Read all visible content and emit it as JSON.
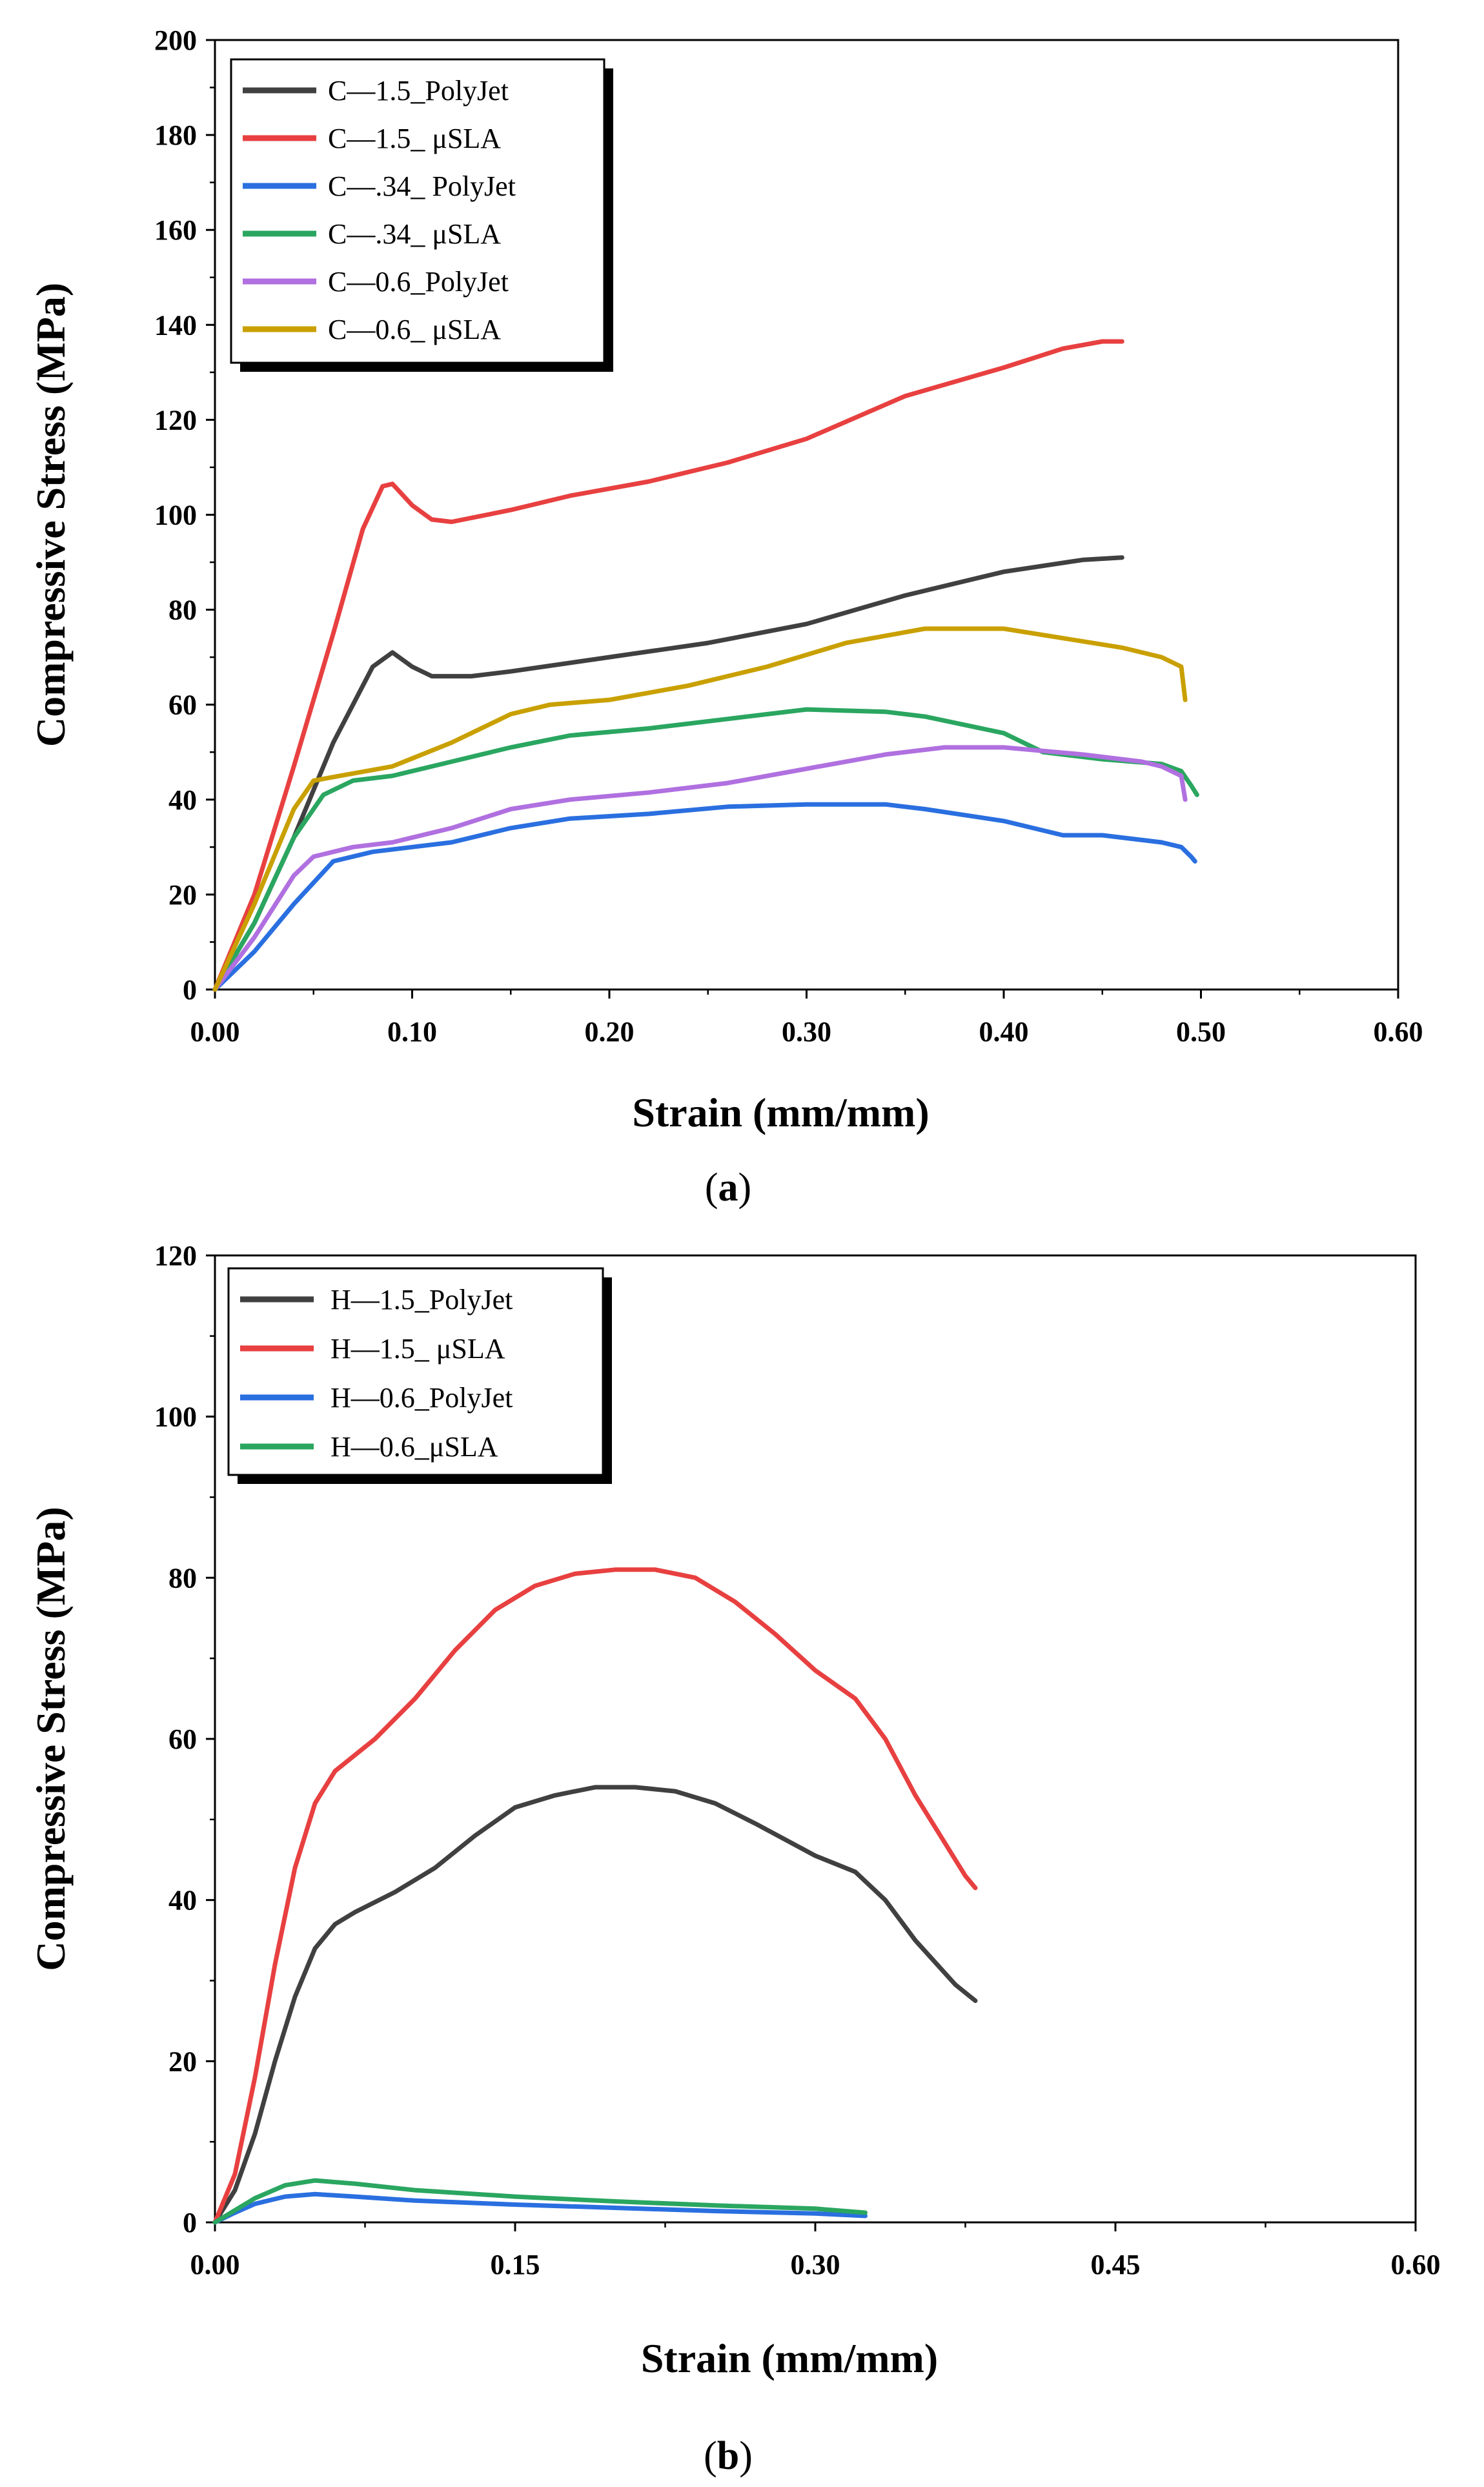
{
  "figure": {
    "panels": [
      {
        "caption_open": "(",
        "caption_letter": "a",
        "caption_close": ")"
      },
      {
        "caption_open": "(",
        "caption_letter": "b",
        "caption_close": ")"
      }
    ]
  },
  "chart_data": [
    {
      "type": "line",
      "xlabel": "Strain (mm/mm)",
      "ylabel": "Compressive Stress (MPa)",
      "xlim": [
        0,
        0.6
      ],
      "ylim": [
        0,
        200
      ],
      "xticks": [
        0,
        0.1,
        0.2,
        0.3,
        0.4,
        0.5,
        0.6
      ],
      "xtick_labels": [
        "0.00",
        "0.10",
        "0.20",
        "0.30",
        "0.40",
        "0.50",
        "0.60"
      ],
      "yticks": [
        0,
        20,
        40,
        60,
        80,
        100,
        120,
        140,
        160,
        180,
        200
      ],
      "ytick_labels": [
        "0",
        "20",
        "40",
        "60",
        "80",
        "100",
        "120",
        "140",
        "160",
        "180",
        "200"
      ],
      "grid": false,
      "legend_position": "top-left",
      "series": [
        {
          "name": "C—1.5_PolyJet",
          "color": "#404040",
          "points": [
            [
              0,
              0
            ],
            [
              0.02,
              14
            ],
            [
              0.04,
              32
            ],
            [
              0.06,
              52
            ],
            [
              0.08,
              68
            ],
            [
              0.09,
              71
            ],
            [
              0.1,
              68
            ],
            [
              0.11,
              66
            ],
            [
              0.13,
              66
            ],
            [
              0.15,
              67
            ],
            [
              0.2,
              70
            ],
            [
              0.25,
              73
            ],
            [
              0.3,
              77
            ],
            [
              0.35,
              83
            ],
            [
              0.4,
              88
            ],
            [
              0.44,
              90.5
            ],
            [
              0.46,
              91
            ]
          ]
        },
        {
          "name": "C—1.5_ μSLA",
          "color": "#e84040",
          "points": [
            [
              0,
              0
            ],
            [
              0.02,
              20
            ],
            [
              0.04,
              47
            ],
            [
              0.06,
              75
            ],
            [
              0.075,
              97
            ],
            [
              0.085,
              106
            ],
            [
              0.09,
              106.5
            ],
            [
              0.1,
              102
            ],
            [
              0.11,
              99
            ],
            [
              0.12,
              98.5
            ],
            [
              0.15,
              101
            ],
            [
              0.18,
              104
            ],
            [
              0.22,
              107
            ],
            [
              0.26,
              111
            ],
            [
              0.3,
              116
            ],
            [
              0.35,
              125
            ],
            [
              0.4,
              131
            ],
            [
              0.43,
              135
            ],
            [
              0.45,
              136.5
            ],
            [
              0.46,
              136.5
            ]
          ]
        },
        {
          "name": "C—.34_ PolyJet",
          "color": "#2a6fe0",
          "points": [
            [
              0,
              0
            ],
            [
              0.02,
              8
            ],
            [
              0.04,
              18
            ],
            [
              0.06,
              27
            ],
            [
              0.08,
              29
            ],
            [
              0.1,
              30
            ],
            [
              0.12,
              31
            ],
            [
              0.15,
              34
            ],
            [
              0.18,
              36
            ],
            [
              0.22,
              37
            ],
            [
              0.26,
              38.5
            ],
            [
              0.3,
              39
            ],
            [
              0.34,
              39
            ],
            [
              0.36,
              38
            ],
            [
              0.4,
              35.5
            ],
            [
              0.43,
              32.5
            ],
            [
              0.45,
              32.5
            ],
            [
              0.48,
              31
            ],
            [
              0.49,
              30
            ],
            [
              0.495,
              28
            ],
            [
              0.497,
              27
            ]
          ]
        },
        {
          "name": "C—.34_ μSLA",
          "color": "#2aa660",
          "points": [
            [
              0,
              0
            ],
            [
              0.02,
              14
            ],
            [
              0.04,
              32
            ],
            [
              0.055,
              41
            ],
            [
              0.07,
              44
            ],
            [
              0.09,
              45
            ],
            [
              0.12,
              48
            ],
            [
              0.15,
              51
            ],
            [
              0.18,
              53.5
            ],
            [
              0.22,
              55
            ],
            [
              0.26,
              57
            ],
            [
              0.3,
              59
            ],
            [
              0.34,
              58.5
            ],
            [
              0.36,
              57.5
            ],
            [
              0.4,
              54
            ],
            [
              0.42,
              50
            ],
            [
              0.45,
              48.5
            ],
            [
              0.48,
              47.5
            ],
            [
              0.49,
              46
            ],
            [
              0.495,
              43
            ],
            [
              0.498,
              41
            ]
          ]
        },
        {
          "name": "C—0.6_PolyJet",
          "color": "#b070e0",
          "points": [
            [
              0,
              0
            ],
            [
              0.02,
              11
            ],
            [
              0.04,
              24
            ],
            [
              0.05,
              28
            ],
            [
              0.07,
              30
            ],
            [
              0.09,
              31
            ],
            [
              0.12,
              34
            ],
            [
              0.15,
              38
            ],
            [
              0.18,
              40
            ],
            [
              0.22,
              41.5
            ],
            [
              0.26,
              43.5
            ],
            [
              0.3,
              46.5
            ],
            [
              0.34,
              49.5
            ],
            [
              0.37,
              51
            ],
            [
              0.4,
              51
            ],
            [
              0.44,
              49.5
            ],
            [
              0.47,
              48
            ],
            [
              0.48,
              47
            ],
            [
              0.49,
              45
            ],
            [
              0.492,
              40
            ]
          ]
        },
        {
          "name": "C—0.6_ μSLA",
          "color": "#c9a000",
          "points": [
            [
              0,
              0
            ],
            [
              0.02,
              18
            ],
            [
              0.04,
              38
            ],
            [
              0.05,
              44
            ],
            [
              0.07,
              45.5
            ],
            [
              0.09,
              47
            ],
            [
              0.12,
              52
            ],
            [
              0.15,
              58
            ],
            [
              0.17,
              60
            ],
            [
              0.2,
              61
            ],
            [
              0.24,
              64
            ],
            [
              0.28,
              68
            ],
            [
              0.32,
              73
            ],
            [
              0.36,
              76
            ],
            [
              0.4,
              76
            ],
            [
              0.43,
              74
            ],
            [
              0.46,
              72
            ],
            [
              0.48,
              70
            ],
            [
              0.49,
              68
            ],
            [
              0.492,
              61
            ]
          ]
        }
      ]
    },
    {
      "type": "line",
      "xlabel": "Strain (mm/mm)",
      "ylabel": "Compressive Stress (MPa)",
      "xlim": [
        0,
        0.6
      ],
      "ylim": [
        0,
        120
      ],
      "xticks": [
        0,
        0.15,
        0.3,
        0.45,
        0.6
      ],
      "xtick_labels": [
        "0.00",
        "0.15",
        "0.30",
        "0.45",
        "0.60"
      ],
      "yticks": [
        0,
        20,
        40,
        60,
        80,
        100,
        120
      ],
      "ytick_labels": [
        "0",
        "20",
        "40",
        "60",
        "80",
        "100",
        "120"
      ],
      "grid": false,
      "legend_position": "top-left",
      "series": [
        {
          "name": "H—1.5_PolyJet",
          "color": "#404040",
          "points": [
            [
              0,
              0
            ],
            [
              0.01,
              4
            ],
            [
              0.02,
              11
            ],
            [
              0.03,
              20
            ],
            [
              0.04,
              28
            ],
            [
              0.05,
              34
            ],
            [
              0.06,
              37
            ],
            [
              0.07,
              38.5
            ],
            [
              0.09,
              41
            ],
            [
              0.11,
              44
            ],
            [
              0.13,
              48
            ],
            [
              0.15,
              51.5
            ],
            [
              0.17,
              53
            ],
            [
              0.19,
              54
            ],
            [
              0.21,
              54
            ],
            [
              0.23,
              53.5
            ],
            [
              0.25,
              52
            ],
            [
              0.27,
              49.5
            ],
            [
              0.3,
              45.5
            ],
            [
              0.32,
              43.5
            ],
            [
              0.335,
              40
            ],
            [
              0.35,
              35
            ],
            [
              0.37,
              29.5
            ],
            [
              0.38,
              27.5
            ]
          ]
        },
        {
          "name": "H—1.5_ μSLA",
          "color": "#e84040",
          "points": [
            [
              0,
              0
            ],
            [
              0.01,
              6
            ],
            [
              0.02,
              18
            ],
            [
              0.03,
              32
            ],
            [
              0.04,
              44
            ],
            [
              0.05,
              52
            ],
            [
              0.06,
              56
            ],
            [
              0.08,
              60
            ],
            [
              0.1,
              65
            ],
            [
              0.12,
              71
            ],
            [
              0.14,
              76
            ],
            [
              0.16,
              79
            ],
            [
              0.18,
              80.5
            ],
            [
              0.2,
              81
            ],
            [
              0.22,
              81
            ],
            [
              0.24,
              80
            ],
            [
              0.26,
              77
            ],
            [
              0.28,
              73
            ],
            [
              0.3,
              68.5
            ],
            [
              0.32,
              65
            ],
            [
              0.335,
              60
            ],
            [
              0.35,
              53
            ],
            [
              0.365,
              47
            ],
            [
              0.375,
              43
            ],
            [
              0.38,
              41.5
            ]
          ]
        },
        {
          "name": "H—0.6_PolyJet",
          "color": "#2a6fe0",
          "points": [
            [
              0,
              0
            ],
            [
              0.01,
              1.2
            ],
            [
              0.02,
              2.3
            ],
            [
              0.035,
              3.2
            ],
            [
              0.05,
              3.5
            ],
            [
              0.07,
              3.2
            ],
            [
              0.1,
              2.7
            ],
            [
              0.15,
              2.2
            ],
            [
              0.2,
              1.8
            ],
            [
              0.25,
              1.4
            ],
            [
              0.3,
              1.1
            ],
            [
              0.325,
              0.8
            ]
          ]
        },
        {
          "name": "H—0.6_μSLA",
          "color": "#2aa660",
          "points": [
            [
              0,
              0
            ],
            [
              0.01,
              1.5
            ],
            [
              0.02,
              3
            ],
            [
              0.035,
              4.6
            ],
            [
              0.05,
              5.2
            ],
            [
              0.07,
              4.8
            ],
            [
              0.1,
              4
            ],
            [
              0.15,
              3.2
            ],
            [
              0.2,
              2.6
            ],
            [
              0.25,
              2.1
            ],
            [
              0.3,
              1.7
            ],
            [
              0.325,
              1.2
            ]
          ]
        }
      ]
    }
  ]
}
